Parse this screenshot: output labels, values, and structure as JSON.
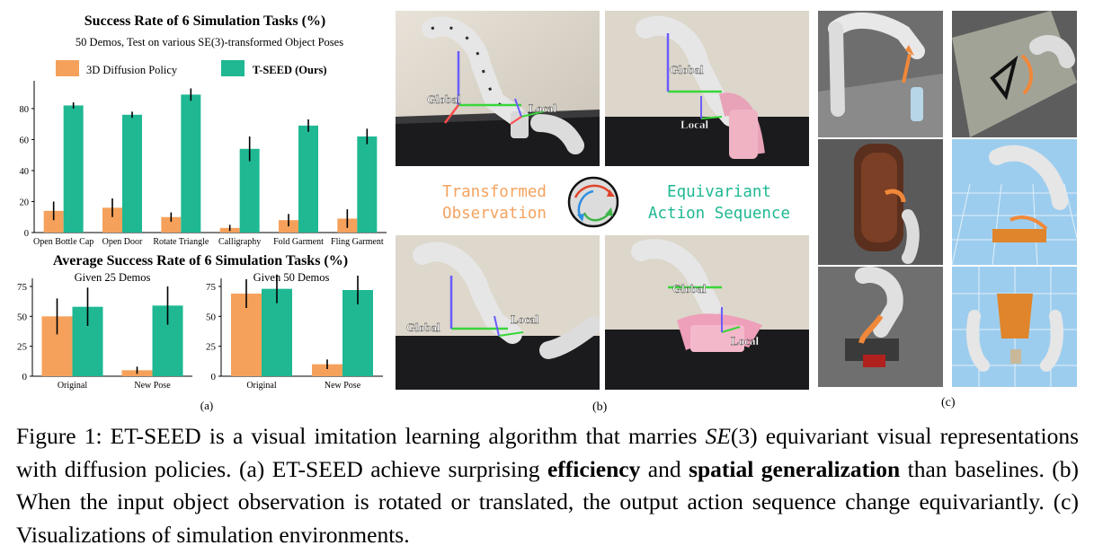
{
  "figure": {
    "panel_a_label": "(a)",
    "panel_b_label": "(b)",
    "panel_c_label": "(c)"
  },
  "panel_b": {
    "left_text_line1": "Transformed",
    "left_text_line2": "Observation",
    "right_text_line1": "Equivariant",
    "right_text_line2": "Action Sequence",
    "photos": [
      {
        "global": "Global",
        "local": "Local"
      },
      {
        "global": "Global",
        "local": "Local"
      },
      {
        "global": "Global",
        "local": "Local"
      },
      {
        "global": "Global",
        "local": "Local"
      }
    ]
  },
  "caption": {
    "p1": "Figure 1: ET-SEED is a visual imitation learning algorithm that marries ",
    "math": "SE",
    "math_arg": "(3)",
    "p2": " equivariant visual representations with diffusion policies. (a) ET-SEED achieve surprising ",
    "bold1": "efficiency",
    "p3": " and ",
    "bold2": "spatial generalization",
    "p4": " than baselines. (b) When the input object observation is rotated or translated, the output action sequence change equivariantly. (c) Visualizations of simulation environments."
  },
  "chart_data": [
    {
      "type": "bar",
      "title": "Success Rate of 6 Simulation Tasks (%)",
      "subtitle": "50 Demos, Test on various SE(3)-transformed Object Poses",
      "categories": [
        "Open Bottle Cap",
        "Open Door",
        "Rotate Triangle",
        "Calligraphy",
        "Fold Garment",
        "Fling Garment"
      ],
      "series": [
        {
          "name": "3D Diffusion Policy",
          "color": "#f5a15b",
          "values": [
            14,
            16,
            10,
            3,
            8,
            9
          ],
          "errors": [
            6,
            6,
            3,
            2,
            4,
            6
          ]
        },
        {
          "name": "T-SEED (Ours)",
          "color": "#1fb893",
          "values": [
            82,
            76,
            89,
            54,
            69,
            62
          ],
          "errors": [
            2,
            2,
            4,
            8,
            4,
            5
          ]
        }
      ],
      "ylim": [
        0,
        95
      ],
      "yticks": [
        0,
        20,
        40,
        60,
        80
      ],
      "legend": "top"
    },
    {
      "type": "bar",
      "title": "Average Success Rate of 6 Simulation Tasks (%)",
      "subtitle": "Given 25 Demos",
      "categories": [
        "Original",
        "New Pose"
      ],
      "series": [
        {
          "name": "3D Diffusion Policy",
          "color": "#f5a15b",
          "values": [
            50,
            5
          ],
          "errors": [
            15,
            3
          ]
        },
        {
          "name": "T-SEED (Ours)",
          "color": "#1fb893",
          "values": [
            58,
            59
          ],
          "errors": [
            16,
            16
          ]
        }
      ],
      "ylim": [
        0,
        78
      ],
      "yticks": [
        0,
        25,
        50,
        75
      ]
    },
    {
      "type": "bar",
      "subtitle": "Given 50 Demos",
      "categories": [
        "Original",
        "New Pose"
      ],
      "series": [
        {
          "name": "3D Diffusion Policy",
          "color": "#f5a15b",
          "values": [
            69,
            10
          ],
          "errors": [
            12,
            4
          ]
        },
        {
          "name": "T-SEED (Ours)",
          "color": "#1fb893",
          "values": [
            73,
            72
          ],
          "errors": [
            12,
            12
          ]
        }
      ],
      "ylim": [
        0,
        78
      ],
      "yticks": [
        0,
        25,
        50,
        75
      ]
    }
  ]
}
